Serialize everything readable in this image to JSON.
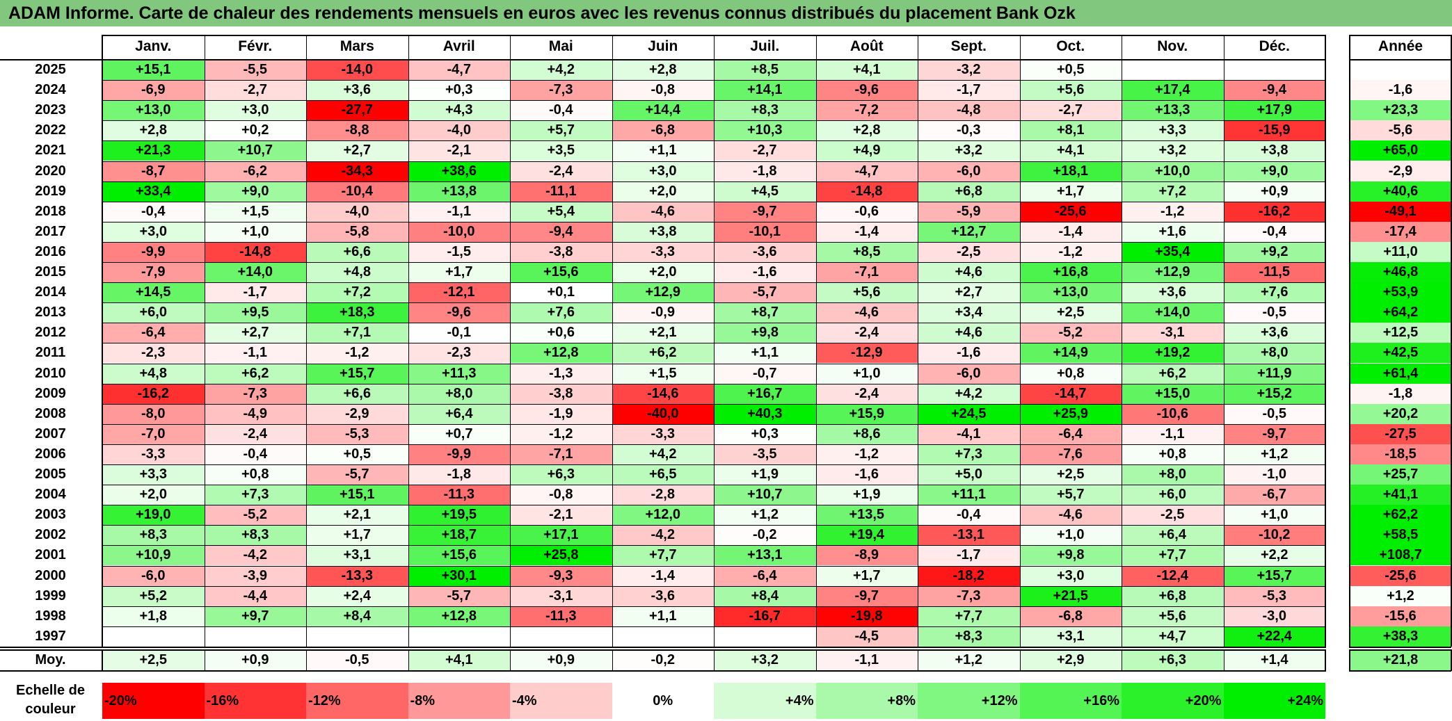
{
  "chart_data": {
    "type": "heatmap",
    "title": "ADAM Informe. Carte de chaleur des rendements mensuels en euros avec les revenus connus distribués du placement Bank Ozk",
    "columns": [
      "Janv.",
      "Févr.",
      "Mars",
      "Avril",
      "Mai",
      "Juin",
      "Juil.",
      "Août",
      "Sept.",
      "Oct.",
      "Nov.",
      "Déc."
    ],
    "year_header": "Année",
    "rows": [
      {
        "label": "2025",
        "values": [
          "+15,1",
          "-5,5",
          "-14,0",
          "-4,7",
          "+4,2",
          "+2,8",
          "+8,5",
          "+4,1",
          "-3,2",
          "+0,5",
          "",
          ""
        ],
        "year": ""
      },
      {
        "label": "2024",
        "values": [
          "-6,9",
          "-2,7",
          "+3,6",
          "+0,3",
          "-7,3",
          "-0,8",
          "+14,1",
          "-9,6",
          "-1,7",
          "+5,6",
          "+17,4",
          "-9,4"
        ],
        "year": "-1,6"
      },
      {
        "label": "2023",
        "values": [
          "+13,0",
          "+3,0",
          "-27,7",
          "+4,3",
          "-0,4",
          "+14,4",
          "+8,3",
          "-7,2",
          "-4,8",
          "-2,7",
          "+13,3",
          "+17,9"
        ],
        "year": "+23,3"
      },
      {
        "label": "2022",
        "values": [
          "+2,8",
          "+0,2",
          "-8,8",
          "-4,0",
          "+5,7",
          "-6,8",
          "+10,3",
          "+2,8",
          "-0,3",
          "+8,1",
          "+3,3",
          "-15,9"
        ],
        "year": "-5,6"
      },
      {
        "label": "2021",
        "values": [
          "+21,3",
          "+10,7",
          "+2,7",
          "-2,1",
          "+3,5",
          "+1,1",
          "-2,7",
          "+4,9",
          "+3,2",
          "+4,1",
          "+3,2",
          "+3,8"
        ],
        "year": "+65,0"
      },
      {
        "label": "2020",
        "values": [
          "-8,7",
          "-6,2",
          "-34,3",
          "+38,6",
          "-2,4",
          "+3,0",
          "-1,8",
          "-4,7",
          "-6,0",
          "+18,1",
          "+10,0",
          "+9,0"
        ],
        "year": "-2,9"
      },
      {
        "label": "2019",
        "values": [
          "+33,4",
          "+9,0",
          "-10,4",
          "+13,8",
          "-11,1",
          "+2,0",
          "+4,5",
          "-14,8",
          "+6,8",
          "+1,7",
          "+7,2",
          "+0,9"
        ],
        "year": "+40,6"
      },
      {
        "label": "2018",
        "values": [
          "-0,4",
          "+1,5",
          "-4,0",
          "-1,1",
          "+5,4",
          "-4,6",
          "-9,7",
          "-0,6",
          "-5,9",
          "-25,6",
          "-1,2",
          "-16,2"
        ],
        "year": "-49,1"
      },
      {
        "label": "2017",
        "values": [
          "+3,0",
          "+1,0",
          "-5,8",
          "-10,0",
          "-9,4",
          "+3,8",
          "-10,1",
          "-1,4",
          "+12,7",
          "-1,4",
          "+1,6",
          "-0,4"
        ],
        "year": "-17,4"
      },
      {
        "label": "2016",
        "values": [
          "-9,9",
          "-14,8",
          "+6,6",
          "-1,5",
          "-3,8",
          "-3,3",
          "-3,6",
          "+8,5",
          "-2,5",
          "-1,2",
          "+35,4",
          "+9,2"
        ],
        "year": "+11,0"
      },
      {
        "label": "2015",
        "values": [
          "-7,9",
          "+14,0",
          "+4,8",
          "+1,7",
          "+15,6",
          "+2,0",
          "-1,6",
          "-7,1",
          "+4,6",
          "+16,8",
          "+12,9",
          "-11,5"
        ],
        "year": "+46,8"
      },
      {
        "label": "2014",
        "values": [
          "+14,5",
          "-1,7",
          "+7,2",
          "-12,1",
          "+0,1",
          "+12,9",
          "-5,7",
          "+5,6",
          "+2,7",
          "+13,0",
          "+3,6",
          "+7,6"
        ],
        "year": "+53,9"
      },
      {
        "label": "2013",
        "values": [
          "+6,0",
          "+9,5",
          "+18,3",
          "-9,6",
          "+7,6",
          "-0,9",
          "+8,7",
          "-4,6",
          "+3,4",
          "+2,5",
          "+14,0",
          "-0,5"
        ],
        "year": "+64,2"
      },
      {
        "label": "2012",
        "values": [
          "-6,4",
          "+2,7",
          "+7,1",
          "-0,1",
          "+0,6",
          "+2,1",
          "+9,8",
          "-2,4",
          "+4,6",
          "-5,2",
          "-3,1",
          "+3,6"
        ],
        "year": "+12,5"
      },
      {
        "label": "2011",
        "values": [
          "-2,3",
          "-1,1",
          "-1,2",
          "-2,3",
          "+12,8",
          "+6,2",
          "+1,1",
          "-12,9",
          "-1,6",
          "+14,9",
          "+19,2",
          "+8,0"
        ],
        "year": "+42,5"
      },
      {
        "label": "2010",
        "values": [
          "+4,8",
          "+6,2",
          "+15,7",
          "+11,3",
          "-1,3",
          "+1,5",
          "-0,7",
          "+1,0",
          "-6,0",
          "+0,8",
          "+6,2",
          "+11,9"
        ],
        "year": "+61,4"
      },
      {
        "label": "2009",
        "values": [
          "-16,2",
          "-7,3",
          "+6,6",
          "+8,0",
          "-3,8",
          "-14,6",
          "+16,7",
          "-2,4",
          "+4,2",
          "-14,7",
          "+15,0",
          "+15,2"
        ],
        "year": "-1,8"
      },
      {
        "label": "2008",
        "values": [
          "-8,0",
          "-4,9",
          "-2,9",
          "+6,4",
          "-1,9",
          "-40,0",
          "+40,3",
          "+15,9",
          "+24,5",
          "+25,9",
          "-10,6",
          "-0,5"
        ],
        "year": "+20,2"
      },
      {
        "label": "2007",
        "values": [
          "-7,0",
          "-2,4",
          "-5,3",
          "+0,7",
          "-1,2",
          "-3,3",
          "+0,3",
          "+8,6",
          "-4,1",
          "-6,4",
          "-1,1",
          "-9,7"
        ],
        "year": "-27,5"
      },
      {
        "label": "2006",
        "values": [
          "-3,3",
          "-0,4",
          "+0,5",
          "-9,9",
          "-7,1",
          "+4,2",
          "-3,5",
          "-1,2",
          "+7,3",
          "-7,6",
          "+0,8",
          "+1,2"
        ],
        "year": "-18,5"
      },
      {
        "label": "2005",
        "values": [
          "+3,3",
          "+0,8",
          "-5,7",
          "-1,8",
          "+6,3",
          "+6,5",
          "+1,9",
          "-1,6",
          "+5,0",
          "+2,5",
          "+8,0",
          "-1,0"
        ],
        "year": "+25,7"
      },
      {
        "label": "2004",
        "values": [
          "+2,0",
          "+7,3",
          "+15,1",
          "-11,3",
          "-0,8",
          "-2,8",
          "+10,7",
          "+1,9",
          "+11,1",
          "+5,7",
          "+6,0",
          "-6,7"
        ],
        "year": "+41,1"
      },
      {
        "label": "2003",
        "values": [
          "+19,0",
          "-5,2",
          "+2,1",
          "+19,5",
          "-2,1",
          "+12,0",
          "+1,2",
          "+13,5",
          "-0,4",
          "-4,6",
          "-2,5",
          "+1,0"
        ],
        "year": "+62,2"
      },
      {
        "label": "2002",
        "values": [
          "+8,3",
          "+8,3",
          "+1,7",
          "+18,7",
          "+17,1",
          "-4,2",
          "-0,2",
          "+19,4",
          "-13,1",
          "+1,0",
          "+6,4",
          "-10,2"
        ],
        "year": "+58,5"
      },
      {
        "label": "2001",
        "values": [
          "+10,9",
          "-4,2",
          "+3,1",
          "+15,6",
          "+25,8",
          "+7,7",
          "+13,1",
          "-8,9",
          "-1,7",
          "+9,8",
          "+7,7",
          "+2,2"
        ],
        "year": "+108,7"
      },
      {
        "label": "2000",
        "values": [
          "-6,0",
          "-3,9",
          "-13,3",
          "+30,1",
          "-9,3",
          "-1,4",
          "-6,4",
          "+1,7",
          "-18,2",
          "+3,0",
          "-12,4",
          "+15,7"
        ],
        "year": "-25,6"
      },
      {
        "label": "1999",
        "values": [
          "+5,2",
          "-4,4",
          "+2,4",
          "-5,7",
          "-3,1",
          "-3,6",
          "+8,4",
          "-9,7",
          "-7,3",
          "+21,5",
          "+6,8",
          "-5,3"
        ],
        "year": "+1,2"
      },
      {
        "label": "1998",
        "values": [
          "+1,8",
          "+9,7",
          "+8,4",
          "+12,8",
          "-11,3",
          "+1,1",
          "-16,7",
          "-19,8",
          "+7,7",
          "-6,8",
          "+5,6",
          "-3,0"
        ],
        "year": "-15,6"
      },
      {
        "label": "1997",
        "values": [
          "",
          "",
          "",
          "",
          "",
          "",
          "",
          "-4,5",
          "+8,3",
          "+3,1",
          "+4,7",
          "+22,4"
        ],
        "year": "+38,3"
      }
    ],
    "average": {
      "label": "Moy.",
      "values": [
        "+2,5",
        "+0,9",
        "-0,5",
        "+4,1",
        "+0,9",
        "-0,2",
        "+3,2",
        "-1,1",
        "+1,2",
        "+2,9",
        "+6,3",
        "+1,4"
      ],
      "year": "+21,8"
    },
    "color_scale": {
      "label_line1": "Echelle de",
      "label_line2": "couleur",
      "stops": [
        "-20%",
        "-16%",
        "-12%",
        "-8%",
        "-4%",
        "0%",
        "+4%",
        "+8%",
        "+12%",
        "+16%",
        "+20%",
        "+24%"
      ]
    },
    "colors": {
      "title_bar": "#82c77e",
      "negative_max": "#ff0000",
      "positive_max": "#00ee00",
      "neutral": "#ffffff"
    }
  }
}
